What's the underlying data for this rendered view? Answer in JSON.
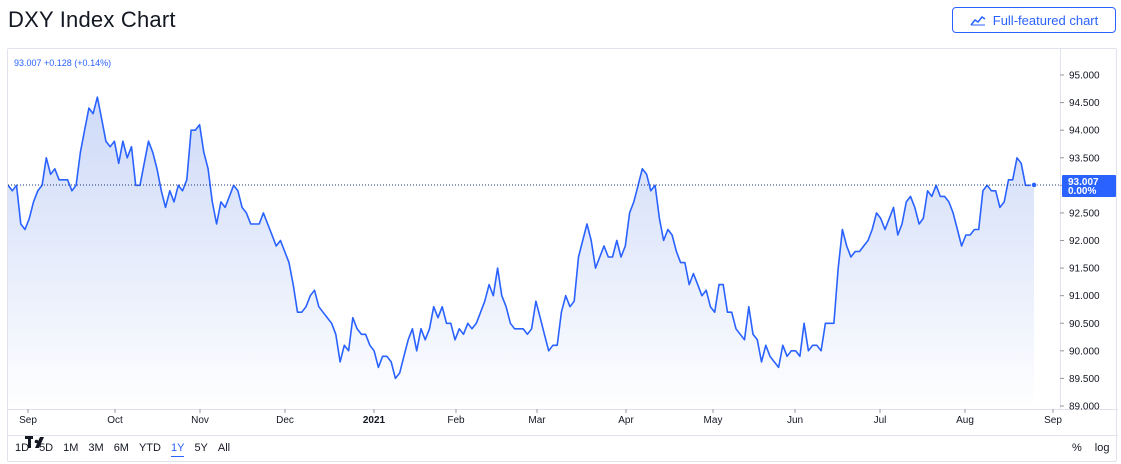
{
  "page": {
    "title": "DXY Index Chart"
  },
  "header": {
    "full_chart_label": "Full-featured chart",
    "full_chart_icon": "chart-line-icon"
  },
  "legend": {
    "text": "93.007 +0.128 (+0.14%)"
  },
  "last_price": {
    "value": "93.007",
    "change": "0.00%"
  },
  "ranges": [
    {
      "label": "1D"
    },
    {
      "label": "5D"
    },
    {
      "label": "1M"
    },
    {
      "label": "3M"
    },
    {
      "label": "6M"
    },
    {
      "label": "YTD"
    },
    {
      "label": "1Y",
      "active": true
    },
    {
      "label": "5Y"
    },
    {
      "label": "All"
    }
  ],
  "scale": {
    "percent_label": "%",
    "log_label": "log"
  },
  "colors": {
    "line": "#2962ff",
    "fill_top": "#c9d6f7",
    "fill_bottom": "#ffffff",
    "axis_text": "#131722",
    "dotted": "#1e3a7a"
  },
  "chart_data": {
    "type": "area",
    "series": [
      {
        "values": [
          93.0,
          92.9,
          93.0,
          92.3,
          92.2,
          92.4,
          92.7,
          92.9,
          93.0,
          93.5,
          93.2,
          93.3,
          93.1,
          93.1,
          93.1,
          92.9,
          93.0,
          93.6,
          94.0,
          94.4,
          94.3,
          94.6,
          94.2,
          93.8,
          93.7,
          93.8,
          93.4,
          93.8,
          93.5,
          93.7,
          93.0,
          93.0,
          93.4,
          93.8,
          93.6,
          93.3,
          92.9,
          92.6,
          92.9,
          92.7,
          93.0,
          92.9,
          93.1,
          94.0,
          94.0,
          94.1,
          93.6,
          93.3,
          92.7,
          92.3,
          92.7,
          92.6,
          92.8,
          93.0,
          92.9,
          92.6,
          92.5,
          92.3,
          92.3,
          92.3,
          92.5,
          92.3,
          92.1,
          91.9,
          92.0,
          91.8,
          91.6,
          91.2,
          90.7,
          90.7,
          90.8,
          91.0,
          91.1,
          90.8,
          90.7,
          90.6,
          90.5,
          90.3,
          89.8,
          90.1,
          90.0,
          90.6,
          90.4,
          90.3,
          90.3,
          90.1,
          90.0,
          89.7,
          89.9,
          89.9,
          89.8,
          89.5,
          89.6,
          89.9,
          90.2,
          90.4,
          90.0,
          90.4,
          90.2,
          90.4,
          90.8,
          90.6,
          90.8,
          90.5,
          90.5,
          90.2,
          90.4,
          90.3,
          90.5,
          90.4,
          90.5,
          90.7,
          90.9,
          91.2,
          91.0,
          91.5,
          91.0,
          90.8,
          90.5,
          90.4,
          90.4,
          90.4,
          90.3,
          90.4,
          90.9,
          90.6,
          90.3,
          90.0,
          90.1,
          90.1,
          90.7,
          91.0,
          90.8,
          90.9,
          91.7,
          92.0,
          92.3,
          92.0,
          91.5,
          91.7,
          91.9,
          91.7,
          91.7,
          92.0,
          91.7,
          91.9,
          92.5,
          92.7,
          93.0,
          93.3,
          93.2,
          92.9,
          93.0,
          92.4,
          92.0,
          92.2,
          92.1,
          91.8,
          91.6,
          91.6,
          91.2,
          91.4,
          91.2,
          91.0,
          91.1,
          90.8,
          90.7,
          91.2,
          91.2,
          90.7,
          90.7,
          90.4,
          90.3,
          90.2,
          90.8,
          90.3,
          90.2,
          89.8,
          90.1,
          89.9,
          89.8,
          89.7,
          90.1,
          89.9,
          90.0,
          90.0,
          89.9,
          90.5,
          90.0,
          90.1,
          90.1,
          90.0,
          90.5,
          90.5,
          90.5,
          91.5,
          92.2,
          91.9,
          91.7,
          91.8,
          91.8,
          91.9,
          92.0,
          92.2,
          92.5,
          92.4,
          92.2,
          92.4,
          92.6,
          92.1,
          92.3,
          92.7,
          92.8,
          92.6,
          92.3,
          92.4,
          92.9,
          92.8,
          93.0,
          92.8,
          92.8,
          92.7,
          92.5,
          92.2,
          91.9,
          92.1,
          92.1,
          92.2,
          92.2,
          92.9,
          93.0,
          92.9,
          92.9,
          92.6,
          92.7,
          93.1,
          93.1,
          93.5,
          93.4,
          93.0,
          93.0,
          93.007
        ],
        "last": "93.007"
      }
    ],
    "x_ticks": [
      "Sep",
      "Oct",
      "Nov",
      "Dec",
      "2021",
      "Feb",
      "Mar",
      "Apr",
      "May",
      "Jun",
      "Jul",
      "Aug",
      "Sep"
    ],
    "y_ticks": [
      "95.000",
      "94.500",
      "94.000",
      "93.500",
      "93.000",
      "92.500",
      "92.000",
      "91.500",
      "91.000",
      "90.500",
      "90.000",
      "89.500",
      "89.000"
    ],
    "ylim": [
      89.0,
      95.0
    ],
    "grid": false,
    "scale": "linear"
  }
}
